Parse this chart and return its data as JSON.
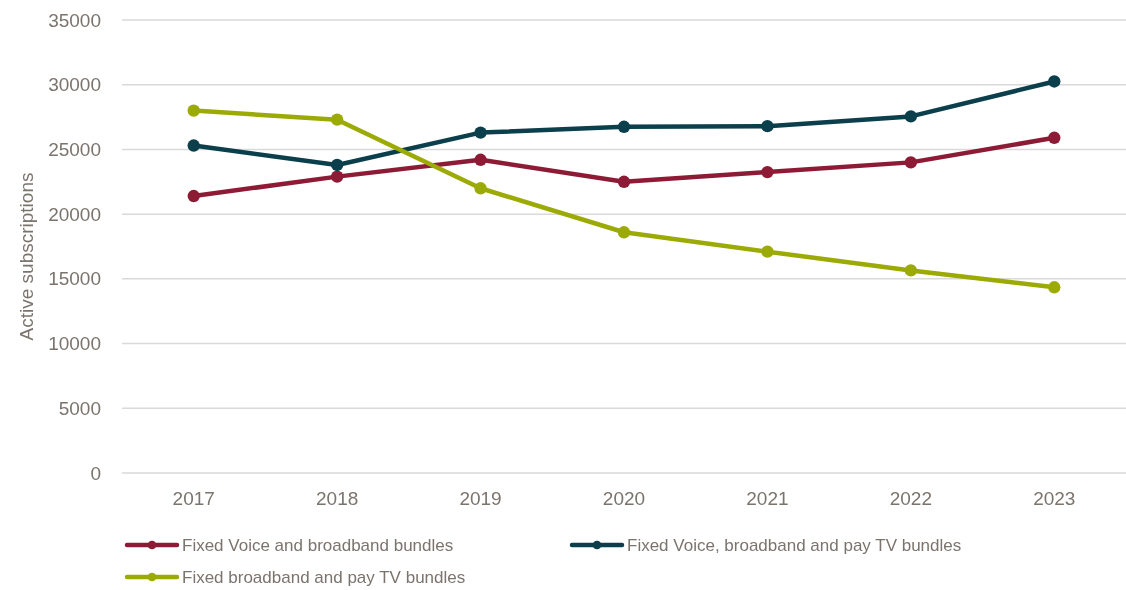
{
  "chart_data": {
    "type": "line",
    "ylabel": "Active subscriptions",
    "categories": [
      "2017",
      "2018",
      "2019",
      "2020",
      "2021",
      "2022",
      "2023"
    ],
    "series": [
      {
        "name": "Fixed Voice and broadband bundles",
        "color": "#8e1b36",
        "values": [
          21400,
          22900,
          24200,
          22500,
          23250,
          24000,
          25900
        ]
      },
      {
        "name": "Fixed Voice, broadband and pay TV bundles",
        "color": "#0b3f4c",
        "values": [
          25300,
          23800,
          26300,
          26750,
          26800,
          27550,
          30250
        ]
      },
      {
        "name": "Fixed broadband and pay TV bundles",
        "color": "#9caa05",
        "values": [
          28000,
          27300,
          22000,
          18600,
          17100,
          15650,
          14350
        ]
      }
    ],
    "ylim": [
      0,
      35000
    ],
    "yticks": [
      0,
      5000,
      10000,
      15000,
      20000,
      25000,
      30000,
      35000
    ],
    "grid": "y",
    "legend": "bottom",
    "marker": "circle",
    "line_style": "solid"
  }
}
